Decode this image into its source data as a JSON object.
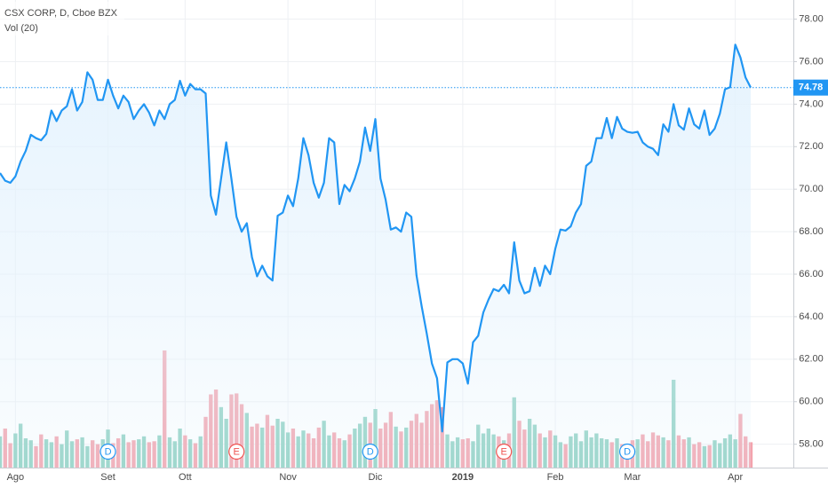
{
  "chart_data": {
    "type": "line",
    "title": "CSX CORP, D, Cboe BZX",
    "subtitle": "Vol (20)",
    "color": "#2196f3",
    "area_color": "#e3f2fd",
    "volume_up_color": "#8fd1c2",
    "volume_down_color": "#f3a3ad",
    "event_colors": {
      "D": "#2196f3",
      "E": "#ef5350"
    },
    "grid": true,
    "ylim": [
      56.9,
      78.9
    ],
    "yticks": [
      {
        "value": 58,
        "label": "58.00"
      },
      {
        "value": 60,
        "label": "60.00"
      },
      {
        "value": 62,
        "label": "62.00"
      },
      {
        "value": 64,
        "label": "64.00"
      },
      {
        "value": 66,
        "label": "66.00"
      },
      {
        "value": 68,
        "label": "68.00"
      },
      {
        "value": 70,
        "label": "70.00"
      },
      {
        "value": 72,
        "label": "72.00"
      },
      {
        "value": 74,
        "label": "74.00"
      },
      {
        "value": 76,
        "label": "76.00"
      },
      {
        "value": 78,
        "label": "78.00"
      }
    ],
    "categories": [
      null,
      null,
      null,
      "Ago",
      null,
      null,
      null,
      null,
      null,
      null,
      null,
      null,
      null,
      null,
      null,
      null,
      null,
      null,
      null,
      null,
      null,
      "Set",
      null,
      null,
      null,
      null,
      null,
      null,
      null,
      null,
      null,
      null,
      null,
      null,
      null,
      null,
      "Ott",
      null,
      null,
      null,
      null,
      null,
      null,
      null,
      null,
      null,
      null,
      null,
      null,
      null,
      null,
      null,
      null,
      null,
      null,
      null,
      "Nov",
      null,
      null,
      null,
      null,
      null,
      null,
      null,
      null,
      null,
      null,
      null,
      null,
      null,
      null,
      null,
      null,
      "Dic",
      null,
      null,
      null,
      null,
      null,
      null,
      null,
      null,
      null,
      null,
      null,
      null,
      null,
      null,
      null,
      null,
      "2019",
      null,
      null,
      null,
      null,
      null,
      null,
      null,
      null,
      null,
      null,
      null,
      null,
      null,
      null,
      null,
      null,
      null,
      "Feb",
      null,
      null,
      null,
      null,
      null,
      null,
      null,
      null,
      null,
      null,
      null,
      null,
      null,
      null,
      "Mar",
      null,
      null,
      null,
      null,
      null,
      null,
      null,
      null,
      null,
      null,
      null,
      null,
      null,
      null,
      null,
      null,
      null,
      null,
      null,
      "Apr",
      null,
      null,
      null
    ],
    "events": [
      null,
      null,
      null,
      null,
      null,
      null,
      null,
      null,
      null,
      null,
      null,
      null,
      null,
      null,
      null,
      null,
      null,
      null,
      null,
      null,
      null,
      "D",
      null,
      null,
      null,
      null,
      null,
      null,
      null,
      null,
      null,
      null,
      null,
      null,
      null,
      null,
      null,
      null,
      null,
      null,
      null,
      null,
      null,
      null,
      null,
      null,
      "E",
      null,
      null,
      null,
      null,
      null,
      null,
      null,
      null,
      null,
      null,
      null,
      null,
      null,
      null,
      null,
      null,
      null,
      null,
      null,
      null,
      null,
      null,
      null,
      null,
      null,
      "D",
      null,
      null,
      null,
      null,
      null,
      null,
      null,
      null,
      null,
      null,
      null,
      null,
      null,
      null,
      null,
      null,
      null,
      null,
      null,
      null,
      null,
      null,
      null,
      null,
      null,
      "E",
      null,
      null,
      null,
      null,
      null,
      null,
      null,
      null,
      null,
      null,
      null,
      null,
      null,
      null,
      null,
      null,
      null,
      null,
      null,
      null,
      null,
      null,
      null,
      "D",
      null,
      null,
      null,
      null,
      null,
      null,
      null,
      null,
      null,
      null,
      null,
      null,
      null,
      null,
      null,
      null,
      null,
      null,
      null,
      null,
      null,
      null,
      null,
      null
    ],
    "values": [
      70.76,
      70.4,
      70.3,
      70.6,
      71.3,
      71.8,
      72.56,
      72.4,
      72.3,
      72.6,
      73.7,
      73.2,
      73.7,
      73.9,
      74.7,
      73.7,
      74.1,
      75.5,
      75.15,
      74.2,
      74.2,
      75.15,
      74.4,
      73.8,
      74.4,
      74.1,
      73.3,
      73.7,
      74,
      73.6,
      73,
      73.7,
      73.3,
      74,
      74.2,
      75.1,
      74.4,
      74.95,
      74.7,
      74.7,
      74.5,
      69.7,
      68.8,
      70.5,
      72.2,
      70.5,
      68.7,
      68,
      68.4,
      66.8,
      65.9,
      66.4,
      65.9,
      65.7,
      68.75,
      68.9,
      69.7,
      69.2,
      70.5,
      72.4,
      71.6,
      70.3,
      69.6,
      70.3,
      72.4,
      72.2,
      69.3,
      70.2,
      69.9,
      70.5,
      71.3,
      72.9,
      71.8,
      73.3,
      70.5,
      69.5,
      68.1,
      68.2,
      68,
      68.9,
      68.7,
      65.95,
      64.5,
      63.2,
      61.8,
      61.1,
      58.6,
      61.85,
      62,
      62,
      61.8,
      60.85,
      62.8,
      63.1,
      64.2,
      64.8,
      65.3,
      65.2,
      65.5,
      65.1,
      67.5,
      65.7,
      65.1,
      65.2,
      66.3,
      65.45,
      66.4,
      66,
      67.2,
      68.1,
      68.05,
      68.25,
      68.9,
      69.3,
      71.1,
      71.3,
      72.4,
      72.4,
      73.35,
      72.4,
      73.4,
      72.85,
      72.7,
      72.65,
      72.7,
      72.2,
      72,
      71.9,
      71.6,
      73.05,
      72.7,
      74,
      73,
      72.8,
      73.8,
      73.05,
      72.85,
      73.7,
      72.55,
      72.85,
      73.55,
      74.7,
      74.8,
      76.8,
      76.2,
      75.25,
      74.78
    ],
    "volume": [
      3.2,
      4.0,
      2.5,
      3.5,
      4.5,
      3.0,
      2.8,
      2.2,
      3.4,
      2.9,
      2.6,
      3.2,
      2.4,
      3.8,
      2.7,
      2.9,
      3.1,
      2.2,
      2.8,
      2.4,
      2.9,
      3.9,
      2.5,
      3.0,
      3.4,
      2.6,
      2.8,
      2.9,
      3.2,
      2.6,
      2.7,
      3.3,
      12.0,
      3.1,
      2.7,
      4.0,
      3.3,
      2.9,
      2.5,
      3.2,
      5.2,
      7.5,
      8.0,
      6.2,
      5.0,
      7.5,
      7.6,
      6.5,
      5.6,
      4.2,
      4.5,
      4.1,
      5.4,
      4.3,
      5.0,
      4.7,
      3.6,
      4.0,
      3.2,
      3.8,
      3.5,
      3.0,
      4.1,
      4.8,
      3.3,
      3.6,
      3.0,
      2.8,
      3.4,
      4.0,
      4.5,
      5.2,
      4.6,
      6.0,
      4.0,
      4.6,
      5.7,
      4.2,
      3.7,
      4.1,
      4.8,
      5.5,
      4.6,
      5.8,
      6.5,
      6.9,
      6.2,
      3.4,
      2.7,
      3.1,
      2.9,
      3.0,
      2.7,
      4.4,
      3.5,
      4.0,
      3.4,
      3.2,
      2.8,
      3.5,
      7.2,
      4.8,
      3.9,
      5.0,
      4.4,
      3.5,
      3.1,
      3.8,
      3.3,
      2.6,
      2.4,
      3.2,
      3.5,
      2.7,
      3.8,
      3.1,
      3.5,
      3.0,
      2.9,
      2.6,
      3.0,
      2.4,
      2.2,
      2.8,
      2.9,
      3.4,
      2.7,
      3.6,
      3.3,
      3.1,
      2.8,
      9.0,
      3.3,
      2.9,
      3.1,
      2.4,
      2.6,
      2.2,
      2.3,
      2.8,
      2.5,
      3.0,
      3.4,
      2.9,
      5.5,
      3.2,
      2.6
    ]
  }
}
